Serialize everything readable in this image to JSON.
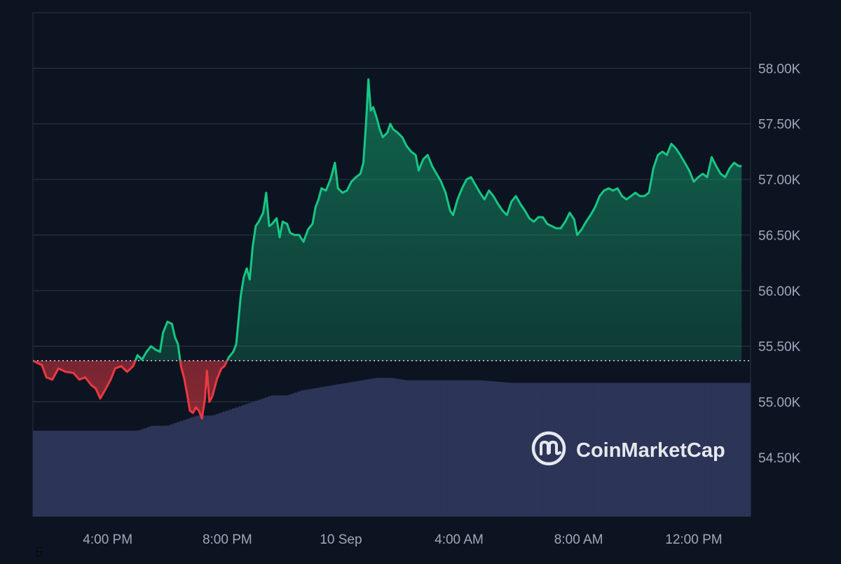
{
  "colors": {
    "background": "#0d1421",
    "grid": "#2a3140",
    "up": "#16c784",
    "down": "#ea3943",
    "volume": "#2c3457",
    "axis_text": "#a1a7bb",
    "baseline": "#cfd6e4",
    "watermark": "#e6e8ee"
  },
  "watermark": {
    "text": "CoinMarketCap",
    "icon": "coinmarketcap-logo-icon"
  },
  "footnote": "5",
  "chart_data": {
    "type": "area",
    "title": "",
    "xlabel": "",
    "ylabel": "",
    "ylim": [
      53.97,
      58.5
    ],
    "y_unit": "K",
    "y_ticks": [
      {
        "value": 58.0,
        "label": "58.00K"
      },
      {
        "value": 57.5,
        "label": "57.50K"
      },
      {
        "value": 57.0,
        "label": "57.00K"
      },
      {
        "value": 56.5,
        "label": "56.50K"
      },
      {
        "value": 56.0,
        "label": "56.00K"
      },
      {
        "value": 55.5,
        "label": "55.50K"
      },
      {
        "value": 55.0,
        "label": "55.00K"
      },
      {
        "value": 54.5,
        "label": "54.50K"
      }
    ],
    "x_domain_hours": [
      0,
      24
    ],
    "x_ticks": [
      {
        "hour": 2.5,
        "label": "4:00 PM"
      },
      {
        "hour": 6.5,
        "label": "8:00 PM"
      },
      {
        "hour": 10.3,
        "label": "10 Sep"
      },
      {
        "hour": 14.25,
        "label": "4:00 AM"
      },
      {
        "hour": 18.25,
        "label": "8:00 AM"
      },
      {
        "hour": 22.1,
        "label": "12:00 PM"
      }
    ],
    "baseline": 55.37,
    "grid": true,
    "series": [
      {
        "points": [
          [
            0.0,
            55.37
          ],
          [
            0.3,
            55.33
          ],
          [
            0.45,
            55.22
          ],
          [
            0.65,
            55.2
          ],
          [
            0.85,
            55.3
          ],
          [
            1.1,
            55.27
          ],
          [
            1.35,
            55.26
          ],
          [
            1.55,
            55.2
          ],
          [
            1.75,
            55.22
          ],
          [
            1.95,
            55.15
          ],
          [
            2.1,
            55.12
          ],
          [
            2.25,
            55.03
          ],
          [
            2.4,
            55.1
          ],
          [
            2.6,
            55.2
          ],
          [
            2.75,
            55.3
          ],
          [
            2.95,
            55.32
          ],
          [
            3.15,
            55.27
          ],
          [
            3.35,
            55.32
          ],
          [
            3.5,
            55.42
          ],
          [
            3.65,
            55.38
          ],
          [
            3.8,
            55.45
          ],
          [
            3.95,
            55.5
          ],
          [
            4.1,
            55.47
          ],
          [
            4.25,
            55.45
          ],
          [
            4.35,
            55.62
          ],
          [
            4.5,
            55.72
          ],
          [
            4.65,
            55.7
          ],
          [
            4.75,
            55.58
          ],
          [
            4.85,
            55.52
          ],
          [
            4.95,
            55.32
          ],
          [
            5.05,
            55.22
          ],
          [
            5.15,
            55.08
          ],
          [
            5.25,
            54.92
          ],
          [
            5.35,
            54.9
          ],
          [
            5.45,
            54.95
          ],
          [
            5.55,
            54.92
          ],
          [
            5.65,
            54.85
          ],
          [
            5.75,
            55.02
          ],
          [
            5.82,
            55.28
          ],
          [
            5.9,
            55.0
          ],
          [
            6.0,
            55.05
          ],
          [
            6.15,
            55.2
          ],
          [
            6.3,
            55.3
          ],
          [
            6.4,
            55.32
          ],
          [
            6.55,
            55.4
          ],
          [
            6.7,
            55.45
          ],
          [
            6.8,
            55.52
          ],
          [
            6.95,
            55.95
          ],
          [
            7.05,
            56.12
          ],
          [
            7.15,
            56.2
          ],
          [
            7.25,
            56.1
          ],
          [
            7.35,
            56.4
          ],
          [
            7.45,
            56.58
          ],
          [
            7.55,
            56.62
          ],
          [
            7.7,
            56.7
          ],
          [
            7.8,
            56.88
          ],
          [
            7.9,
            56.58
          ],
          [
            8.0,
            56.6
          ],
          [
            8.15,
            56.65
          ],
          [
            8.25,
            56.48
          ],
          [
            8.35,
            56.62
          ],
          [
            8.5,
            56.6
          ],
          [
            8.6,
            56.52
          ],
          [
            8.75,
            56.5
          ],
          [
            8.9,
            56.5
          ],
          [
            9.05,
            56.44
          ],
          [
            9.2,
            56.55
          ],
          [
            9.35,
            56.6
          ],
          [
            9.45,
            56.75
          ],
          [
            9.55,
            56.82
          ],
          [
            9.65,
            56.92
          ],
          [
            9.8,
            56.9
          ],
          [
            9.95,
            57.0
          ],
          [
            10.1,
            57.15
          ],
          [
            10.2,
            56.92
          ],
          [
            10.35,
            56.88
          ],
          [
            10.5,
            56.9
          ],
          [
            10.65,
            56.98
          ],
          [
            10.8,
            57.02
          ],
          [
            10.95,
            57.05
          ],
          [
            11.05,
            57.15
          ],
          [
            11.15,
            57.55
          ],
          [
            11.22,
            57.9
          ],
          [
            11.3,
            57.62
          ],
          [
            11.38,
            57.65
          ],
          [
            11.5,
            57.55
          ],
          [
            11.6,
            57.45
          ],
          [
            11.7,
            57.38
          ],
          [
            11.85,
            57.42
          ],
          [
            11.95,
            57.5
          ],
          [
            12.05,
            57.45
          ],
          [
            12.2,
            57.42
          ],
          [
            12.35,
            57.38
          ],
          [
            12.5,
            57.3
          ],
          [
            12.65,
            57.25
          ],
          [
            12.8,
            57.22
          ],
          [
            12.9,
            57.08
          ],
          [
            13.05,
            57.18
          ],
          [
            13.2,
            57.22
          ],
          [
            13.35,
            57.12
          ],
          [
            13.5,
            57.05
          ],
          [
            13.65,
            56.98
          ],
          [
            13.8,
            56.88
          ],
          [
            13.95,
            56.72
          ],
          [
            14.05,
            56.68
          ],
          [
            14.2,
            56.82
          ],
          [
            14.35,
            56.92
          ],
          [
            14.5,
            57.0
          ],
          [
            14.65,
            57.02
          ],
          [
            14.8,
            56.95
          ],
          [
            14.95,
            56.88
          ],
          [
            15.1,
            56.82
          ],
          [
            15.25,
            56.9
          ],
          [
            15.4,
            56.85
          ],
          [
            15.55,
            56.78
          ],
          [
            15.7,
            56.72
          ],
          [
            15.85,
            56.68
          ],
          [
            16.0,
            56.8
          ],
          [
            16.15,
            56.85
          ],
          [
            16.3,
            56.78
          ],
          [
            16.45,
            56.72
          ],
          [
            16.6,
            56.65
          ],
          [
            16.75,
            56.62
          ],
          [
            16.9,
            56.66
          ],
          [
            17.05,
            56.66
          ],
          [
            17.2,
            56.6
          ],
          [
            17.35,
            56.58
          ],
          [
            17.5,
            56.56
          ],
          [
            17.65,
            56.56
          ],
          [
            17.8,
            56.62
          ],
          [
            17.95,
            56.7
          ],
          [
            18.1,
            56.64
          ],
          [
            18.2,
            56.5
          ],
          [
            18.35,
            56.55
          ],
          [
            18.5,
            56.62
          ],
          [
            18.65,
            56.68
          ],
          [
            18.8,
            56.75
          ],
          [
            18.95,
            56.85
          ],
          [
            19.1,
            56.9
          ],
          [
            19.25,
            56.92
          ],
          [
            19.4,
            56.9
          ],
          [
            19.55,
            56.92
          ],
          [
            19.7,
            56.85
          ],
          [
            19.85,
            56.82
          ],
          [
            20.0,
            56.85
          ],
          [
            20.15,
            56.88
          ],
          [
            20.3,
            56.85
          ],
          [
            20.45,
            56.85
          ],
          [
            20.6,
            56.88
          ],
          [
            20.75,
            57.1
          ],
          [
            20.9,
            57.22
          ],
          [
            21.05,
            57.25
          ],
          [
            21.2,
            57.22
          ],
          [
            21.35,
            57.32
          ],
          [
            21.5,
            57.28
          ],
          [
            21.65,
            57.22
          ],
          [
            21.8,
            57.15
          ],
          [
            21.95,
            57.08
          ],
          [
            22.1,
            56.98
          ],
          [
            22.25,
            57.02
          ],
          [
            22.4,
            57.05
          ],
          [
            22.55,
            57.02
          ],
          [
            22.7,
            57.2
          ],
          [
            22.85,
            57.12
          ],
          [
            23.0,
            57.05
          ],
          [
            23.15,
            57.02
          ],
          [
            23.3,
            57.1
          ],
          [
            23.45,
            57.15
          ],
          [
            23.6,
            57.12
          ],
          [
            23.7,
            57.12
          ]
        ]
      }
    ],
    "volume": [
      [
        0.0,
        0.17
      ],
      [
        1.0,
        0.17
      ],
      [
        2.0,
        0.17
      ],
      [
        2.8,
        0.17
      ],
      [
        3.5,
        0.17
      ],
      [
        4.0,
        0.18
      ],
      [
        4.5,
        0.18
      ],
      [
        5.0,
        0.19
      ],
      [
        5.5,
        0.2
      ],
      [
        6.0,
        0.2
      ],
      [
        6.5,
        0.21
      ],
      [
        7.0,
        0.22
      ],
      [
        7.5,
        0.23
      ],
      [
        8.0,
        0.24
      ],
      [
        8.5,
        0.24
      ],
      [
        9.0,
        0.25
      ],
      [
        9.5,
        0.255
      ],
      [
        10.0,
        0.26
      ],
      [
        10.5,
        0.265
      ],
      [
        11.0,
        0.27
      ],
      [
        11.5,
        0.275
      ],
      [
        12.0,
        0.275
      ],
      [
        12.5,
        0.27
      ],
      [
        13.0,
        0.27
      ],
      [
        14.0,
        0.27
      ],
      [
        15.0,
        0.27
      ],
      [
        16.0,
        0.265
      ],
      [
        17.0,
        0.265
      ],
      [
        18.0,
        0.265
      ],
      [
        19.0,
        0.265
      ],
      [
        20.0,
        0.265
      ],
      [
        21.0,
        0.265
      ],
      [
        22.0,
        0.265
      ],
      [
        23.0,
        0.265
      ],
      [
        23.7,
        0.265
      ]
    ]
  }
}
